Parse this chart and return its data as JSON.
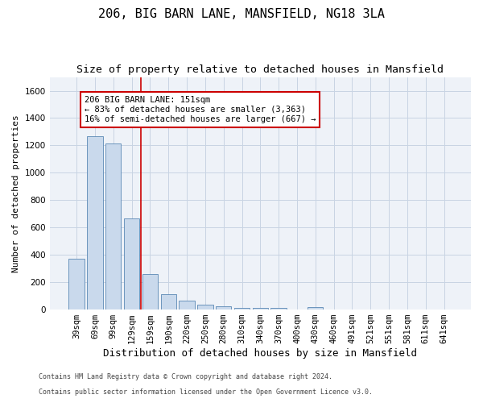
{
  "title": "206, BIG BARN LANE, MANSFIELD, NG18 3LA",
  "subtitle": "Size of property relative to detached houses in Mansfield",
  "xlabel": "Distribution of detached houses by size in Mansfield",
  "ylabel": "Number of detached properties",
  "footer1": "Contains HM Land Registry data © Crown copyright and database right 2024.",
  "footer2": "Contains public sector information licensed under the Open Government Licence v3.0.",
  "categories": [
    "39sqm",
    "69sqm",
    "99sqm",
    "129sqm",
    "159sqm",
    "190sqm",
    "220sqm",
    "250sqm",
    "280sqm",
    "310sqm",
    "340sqm",
    "370sqm",
    "400sqm",
    "430sqm",
    "460sqm",
    "491sqm",
    "521sqm",
    "551sqm",
    "581sqm",
    "611sqm",
    "641sqm"
  ],
  "values": [
    370,
    1265,
    1215,
    665,
    260,
    115,
    65,
    35,
    25,
    15,
    10,
    10,
    0,
    20,
    0,
    0,
    0,
    0,
    0,
    0,
    0
  ],
  "bar_color": "#c9d9ec",
  "bar_edge_color": "#5a88b5",
  "annotation_text": "206 BIG BARN LANE: 151sqm\n← 83% of detached houses are smaller (3,363)\n16% of semi-detached houses are larger (667) →",
  "vline_color": "#cc0000",
  "annotation_box_color": "#cc0000",
  "ylim": [
    0,
    1700
  ],
  "yticks": [
    0,
    200,
    400,
    600,
    800,
    1000,
    1200,
    1400,
    1600
  ],
  "grid_color": "#c8d4e3",
  "background_color": "#eef2f8",
  "title_fontsize": 11,
  "subtitle_fontsize": 9.5,
  "xlabel_fontsize": 9,
  "ylabel_fontsize": 8,
  "tick_fontsize": 7.5,
  "footer_fontsize": 6,
  "annotation_fontsize": 7.5
}
